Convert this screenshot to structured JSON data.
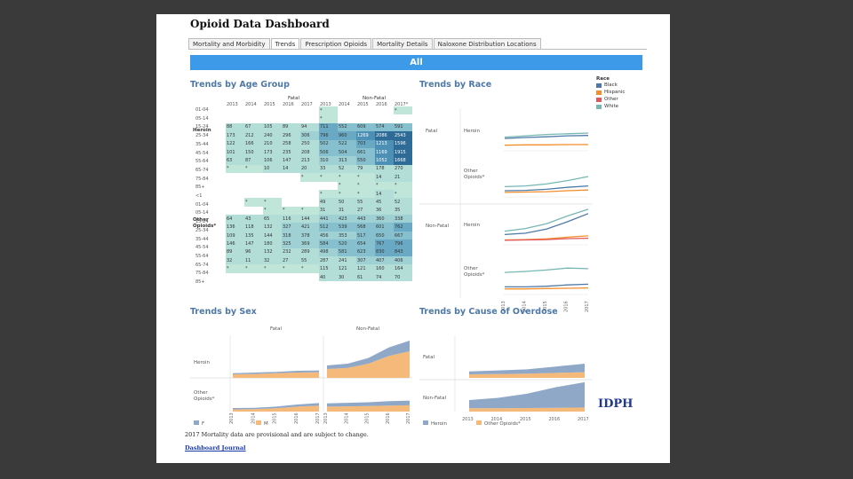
{
  "dashboard": {
    "title": "Opioid Data Dashboard",
    "tabs": [
      "Mortality and Morbidity",
      "Trends",
      "Prescription Opioids",
      "Mortality Details",
      "Naloxone Distribution Locations"
    ],
    "filter_label": "All"
  },
  "age_group": {
    "title": "Trends by Age Group",
    "fatal_label": "Fatal",
    "nonfatal_label": "Non-Fatal",
    "years": [
      "2013",
      "2014",
      "2015",
      "2016",
      "2017",
      "2013",
      "2014",
      "2015",
      "2016",
      "2017*"
    ],
    "drug_labels": [
      "Heroin",
      "Other",
      "Opioids*"
    ],
    "ages": [
      "01-04",
      "05-14",
      "15-24",
      "25-34",
      "35-44",
      "45-54",
      "55-64",
      "65-74",
      "75-84",
      "85+",
      "<1",
      "01-04",
      "05-14",
      "15-24",
      "25-34",
      "35-44",
      "45-54",
      "55-64",
      "65-74",
      "75-84",
      "85+"
    ],
    "rows": [
      [
        "",
        "",
        "",
        "",
        "",
        "*",
        "",
        "",
        "",
        "*"
      ],
      [
        "",
        "",
        "",
        "",
        "",
        "*",
        "",
        "",
        "",
        ""
      ],
      [
        "88",
        "67",
        "105",
        "89",
        "94",
        "711",
        "552",
        "609",
        "574",
        "591"
      ],
      [
        "173",
        "212",
        "240",
        "296",
        "306",
        "796",
        "960",
        "1269",
        "2086",
        "2543"
      ],
      [
        "122",
        "166",
        "210",
        "258",
        "250",
        "502",
        "522",
        "703",
        "1213",
        "1596"
      ],
      [
        "101",
        "150",
        "173",
        "235",
        "208",
        "506",
        "504",
        "661",
        "1169",
        "1915"
      ],
      [
        "63",
        "87",
        "106",
        "147",
        "213",
        "310",
        "313",
        "550",
        "1052",
        "1668"
      ],
      [
        "*",
        "*",
        "10",
        "14",
        "20",
        "33",
        "52",
        "79",
        "178",
        "270"
      ],
      [
        "",
        "",
        "",
        "",
        "*",
        "*",
        "*",
        "*",
        "14",
        "21"
      ],
      [
        "",
        "",
        "",
        "",
        "",
        "",
        "*",
        "*",
        "*",
        "*"
      ],
      [
        "",
        "",
        "",
        "",
        "",
        "*",
        "*",
        "*",
        "14",
        "*"
      ],
      [
        "",
        "*",
        "*",
        "",
        "",
        "49",
        "50",
        "55",
        "45",
        "52"
      ],
      [
        "",
        "",
        "*",
        "*",
        "*",
        "31",
        "31",
        "27",
        "36",
        "35"
      ],
      [
        "64",
        "43",
        "65",
        "116",
        "144",
        "441",
        "423",
        "443",
        "360",
        "338"
      ],
      [
        "136",
        "118",
        "132",
        "327",
        "421",
        "512",
        "539",
        "568",
        "601",
        "762"
      ],
      [
        "109",
        "135",
        "144",
        "318",
        "378",
        "456",
        "353",
        "517",
        "650",
        "667"
      ],
      [
        "146",
        "147",
        "180",
        "325",
        "369",
        "584",
        "520",
        "654",
        "767",
        "796"
      ],
      [
        "89",
        "96",
        "132",
        "232",
        "289",
        "498",
        "581",
        "623",
        "830",
        "843"
      ],
      [
        "32",
        "11",
        "32",
        "27",
        "55",
        "287",
        "241",
        "307",
        "407",
        "406"
      ],
      [
        "*",
        "*",
        "*",
        "*",
        "*",
        "115",
        "121",
        "121",
        "160",
        "164"
      ],
      [
        "",
        "",
        "",
        "",
        "",
        "40",
        "30",
        "61",
        "74",
        "70"
      ]
    ]
  },
  "race": {
    "title": "Trends by Race",
    "legend_title": "Race",
    "legend": [
      {
        "label": "Black",
        "color": "#4e79a7"
      },
      {
        "label": "Hispanic",
        "color": "#f28e2b"
      },
      {
        "label": "Other",
        "color": "#e15759"
      },
      {
        "label": "White",
        "color": "#76b7b2"
      }
    ],
    "row_labels": [
      "Fatal",
      "Non-Fatal"
    ],
    "drug_labels": [
      "Heroin",
      "Other",
      "Opioids*"
    ],
    "years": [
      "2013",
      "2014",
      "2015",
      "2016",
      "2017"
    ]
  },
  "sex": {
    "title": "Trends by Sex",
    "col_labels": [
      "Fatal",
      "Non-Fatal"
    ],
    "row_labels": [
      "Heroin",
      "Other",
      "Opioids*"
    ],
    "years": [
      "2013",
      "2014",
      "2015",
      "2016",
      "2017"
    ],
    "legend": [
      {
        "label": "F",
        "color": "#8fa8c8"
      },
      {
        "label": "M",
        "color": "#f5b979"
      }
    ]
  },
  "cause": {
    "title": "Trends by Cause of Overdose",
    "row_labels": [
      "Fatal",
      "Non-Fatal"
    ],
    "years": [
      "2013",
      "2014",
      "2015",
      "2016",
      "2017"
    ],
    "legend": [
      {
        "label": "Heroin",
        "color": "#8fa8c8"
      },
      {
        "label": "Other Opioids*",
        "color": "#f5b979"
      }
    ]
  },
  "chart_data": [
    {
      "type": "line",
      "title": "Trends by Race",
      "x": [
        "2013",
        "2014",
        "2015",
        "2016",
        "2017"
      ],
      "panels": [
        {
          "name": "Fatal Heroin",
          "series": [
            {
              "name": "White",
              "values": [
                30,
                34,
                38,
                40,
                42
              ]
            },
            {
              "name": "Black",
              "values": [
                26,
                29,
                31,
                34,
                35
              ]
            },
            {
              "name": "Hispanic",
              "values": [
                6,
                7,
                7,
                8,
                8
              ]
            }
          ]
        },
        {
          "name": "Fatal Other Opioids*",
          "series": [
            {
              "name": "White",
              "values": [
                20,
                22,
                28,
                38,
                50
              ]
            },
            {
              "name": "Black",
              "values": [
                8,
                9,
                12,
                18,
                22
              ]
            },
            {
              "name": "Hispanic",
              "values": [
                3,
                4,
                5,
                8,
                10
              ]
            }
          ]
        },
        {
          "name": "Non-Fatal Heroin",
          "series": [
            {
              "name": "White",
              "values": [
                30,
                38,
                52,
                75,
                95
              ]
            },
            {
              "name": "Black",
              "values": [
                20,
                24,
                36,
                58,
                82
              ]
            },
            {
              "name": "Hispanic",
              "values": [
                4,
                5,
                7,
                12,
                16
              ]
            },
            {
              "name": "Other",
              "values": [
                3,
                4,
                5,
                8,
                9
              ]
            }
          ]
        },
        {
          "name": "Non-Fatal Other Opioids*",
          "series": [
            {
              "name": "White",
              "values": [
                55,
                58,
                62,
                68,
                66
              ]
            },
            {
              "name": "Black",
              "values": [
                12,
                12,
                14,
                18,
                20
              ]
            },
            {
              "name": "Hispanic",
              "values": [
                6,
                6,
                7,
                8,
                9
              ]
            }
          ]
        }
      ]
    },
    {
      "type": "area",
      "title": "Trends by Sex",
      "x": [
        "2013",
        "2014",
        "2015",
        "2016",
        "2017"
      ],
      "panels": [
        {
          "name": "Fatal Heroin",
          "series": [
            {
              "name": "M",
              "values": [
                10,
                11,
                13,
                15,
                16
              ]
            },
            {
              "name": "F",
              "values": [
                3,
                4,
                4,
                5,
                5
              ]
            }
          ]
        },
        {
          "name": "Non-Fatal Heroin",
          "series": [
            {
              "name": "M",
              "values": [
                25,
                28,
                40,
                62,
                75
              ]
            },
            {
              "name": "F",
              "values": [
                10,
                12,
                16,
                24,
                30
              ]
            }
          ]
        },
        {
          "name": "Fatal Other Opioids*",
          "series": [
            {
              "name": "M",
              "values": [
                8,
                9,
                12,
                18,
                22
              ]
            },
            {
              "name": "F",
              "values": [
                5,
                5,
                6,
                8,
                9
              ]
            }
          ]
        },
        {
          "name": "Non-Fatal Other Opioids*",
          "series": [
            {
              "name": "M",
              "values": [
                18,
                19,
                20,
                22,
                23
              ]
            },
            {
              "name": "F",
              "values": [
                12,
                13,
                14,
                16,
                17
              ]
            }
          ]
        }
      ]
    },
    {
      "type": "area",
      "title": "Trends by Cause of Overdose",
      "x": [
        "2013",
        "2014",
        "2015",
        "2016",
        "2017"
      ],
      "panels": [
        {
          "name": "Fatal",
          "series": [
            {
              "name": "Other Opioids*",
              "values": [
                10,
                11,
                12,
                14,
                16
              ]
            },
            {
              "name": "Heroin",
              "values": [
                8,
                10,
                12,
                18,
                24
              ]
            }
          ]
        },
        {
          "name": "Non-Fatal",
          "series": [
            {
              "name": "Other Opioids*",
              "values": [
                12,
                12,
                13,
                14,
                15
              ]
            },
            {
              "name": "Heroin",
              "values": [
                30,
                38,
                52,
                75,
                92
              ]
            }
          ]
        }
      ]
    }
  ],
  "footer": {
    "note": "2017 Mortality data are provisional and are subject to change.",
    "link": "Dashboard Journal"
  },
  "logo_text": "IDPH"
}
